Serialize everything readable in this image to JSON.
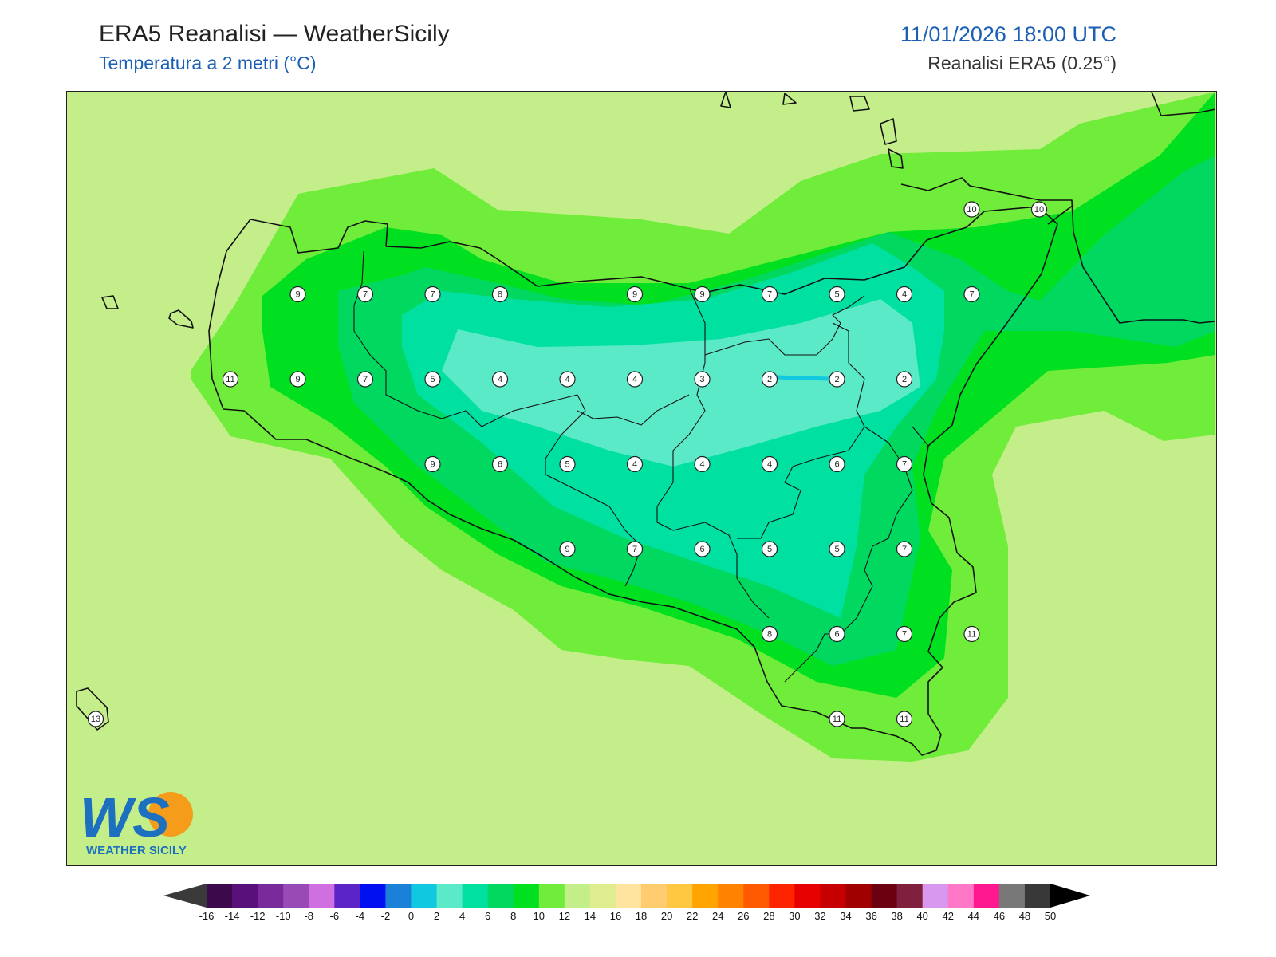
{
  "header": {
    "title": "ERA5 Reanalisi — WeatherSicily",
    "subtitle": "Temperatura a 2 metri (°C)",
    "datetime": "11/01/2026 18:00 UTC",
    "source": "Reanalisi ERA5 (0.25°)"
  },
  "logo": {
    "letters": "WS",
    "name": "WEATHER SICILY",
    "icon": "weathersicily-logo"
  },
  "colorbar": {
    "colors": [
      "#3c0a4a",
      "#5a107a",
      "#7a2a9a",
      "#9a4ab4",
      "#d070e0",
      "#5a24c8",
      "#0010f0",
      "#1a80d8",
      "#10c8e0",
      "#5aeac8",
      "#00e0a0",
      "#00d860",
      "#00e020",
      "#70ec3a",
      "#c4ee8a",
      "#e0ec90",
      "#ffe4a0",
      "#ffcc70",
      "#ffc840",
      "#ffa400",
      "#ff8200",
      "#ff5a00",
      "#ff2400",
      "#e60000",
      "#c60000",
      "#a00000",
      "#6a0010",
      "#80203e",
      "#d898f0",
      "#ff78c8",
      "#ff1890",
      "#787878",
      "#383838"
    ],
    "low_color": "#3a3a3a",
    "high_color": "#000000",
    "ticks": [
      "-16",
      "-14",
      "-12",
      "-10",
      "-8",
      "-6",
      "-4",
      "-2",
      "0",
      "2",
      "4",
      "6",
      "8",
      "10",
      "12",
      "14",
      "16",
      "18",
      "20",
      "22",
      "24",
      "26",
      "28",
      "30",
      "32",
      "34",
      "36",
      "38",
      "40",
      "42",
      "44",
      "46",
      "48",
      "50"
    ]
  },
  "levels": {
    "sea": "#c4ee8a",
    "l10": "#70ec3a",
    "l8": "#00e020",
    "l6": "#00d860",
    "l4": "#00e0a0",
    "l2": "#5aeac8"
  },
  "stations": [
    {
      "v": "9",
      "lon": 12.56,
      "lat": 38.1
    },
    {
      "v": "7",
      "lon": 12.89,
      "lat": 38.1
    },
    {
      "v": "7",
      "lon": 13.22,
      "lat": 38.1
    },
    {
      "v": "8",
      "lon": 13.55,
      "lat": 38.1
    },
    {
      "v": "9",
      "lon": 14.21,
      "lat": 38.1
    },
    {
      "v": "9",
      "lon": 14.54,
      "lat": 38.1
    },
    {
      "v": "7",
      "lon": 14.87,
      "lat": 38.1
    },
    {
      "v": "5",
      "lon": 15.2,
      "lat": 38.1
    },
    {
      "v": "4",
      "lon": 15.53,
      "lat": 38.1
    },
    {
      "v": "7",
      "lon": 15.86,
      "lat": 38.1
    },
    {
      "v": "10",
      "lon": 15.86,
      "lat": 38.35
    },
    {
      "v": "10",
      "lon": 16.19,
      "lat": 38.35
    },
    {
      "v": "11",
      "lon": 12.23,
      "lat": 37.85
    },
    {
      "v": "9",
      "lon": 12.56,
      "lat": 37.85
    },
    {
      "v": "7",
      "lon": 12.89,
      "lat": 37.85
    },
    {
      "v": "5",
      "lon": 13.22,
      "lat": 37.85
    },
    {
      "v": "4",
      "lon": 13.55,
      "lat": 37.85
    },
    {
      "v": "4",
      "lon": 13.88,
      "lat": 37.85
    },
    {
      "v": "4",
      "lon": 14.21,
      "lat": 37.85
    },
    {
      "v": "3",
      "lon": 14.54,
      "lat": 37.85
    },
    {
      "v": "2",
      "lon": 14.87,
      "lat": 37.85
    },
    {
      "v": "2",
      "lon": 15.2,
      "lat": 37.85
    },
    {
      "v": "2",
      "lon": 15.53,
      "lat": 37.85
    },
    {
      "v": "9",
      "lon": 13.22,
      "lat": 37.6
    },
    {
      "v": "6",
      "lon": 13.55,
      "lat": 37.6
    },
    {
      "v": "5",
      "lon": 13.88,
      "lat": 37.6
    },
    {
      "v": "4",
      "lon": 14.21,
      "lat": 37.6
    },
    {
      "v": "4",
      "lon": 14.54,
      "lat": 37.6
    },
    {
      "v": "4",
      "lon": 14.87,
      "lat": 37.6
    },
    {
      "v": "6",
      "lon": 15.2,
      "lat": 37.6
    },
    {
      "v": "7",
      "lon": 15.53,
      "lat": 37.6
    },
    {
      "v": "9",
      "lon": 13.88,
      "lat": 37.35
    },
    {
      "v": "7",
      "lon": 14.21,
      "lat": 37.35
    },
    {
      "v": "6",
      "lon": 14.54,
      "lat": 37.35
    },
    {
      "v": "5",
      "lon": 14.87,
      "lat": 37.35
    },
    {
      "v": "5",
      "lon": 15.2,
      "lat": 37.35
    },
    {
      "v": "7",
      "lon": 15.53,
      "lat": 37.35
    },
    {
      "v": "8",
      "lon": 14.87,
      "lat": 37.1
    },
    {
      "v": "6",
      "lon": 15.2,
      "lat": 37.1
    },
    {
      "v": "7",
      "lon": 15.53,
      "lat": 37.1
    },
    {
      "v": "11",
      "lon": 15.86,
      "lat": 37.1
    },
    {
      "v": "13",
      "lon": 11.57,
      "lat": 36.85
    },
    {
      "v": "11",
      "lon": 15.2,
      "lat": 36.85
    },
    {
      "v": "11",
      "lon": 15.53,
      "lat": 36.85
    }
  ]
}
